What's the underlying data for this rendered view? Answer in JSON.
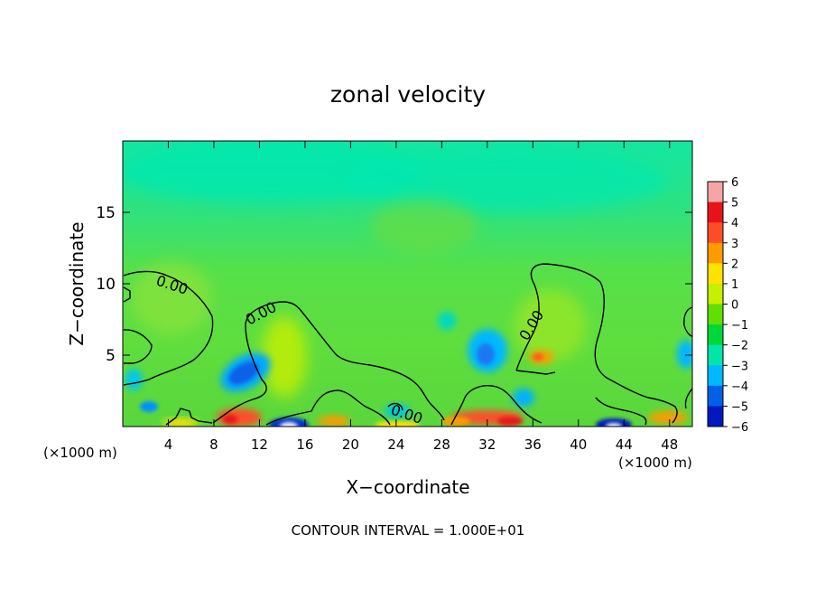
{
  "chart_data": {
    "type": "heatmap",
    "title": "zonal velocity",
    "xlabel": "X−coordinate",
    "ylabel": "Z−coordinate",
    "x_units_left": "(×1000 m)",
    "x_units_right": "(×1000 m)",
    "footer": "CONTOUR INTERVAL = 1.000E+01",
    "contour_label": "0.00",
    "xlim": [
      0,
      50
    ],
    "ylim": [
      0,
      20
    ],
    "x_ticks": [
      4,
      8,
      12,
      16,
      20,
      24,
      28,
      32,
      36,
      40,
      44,
      48
    ],
    "y_ticks": [
      5,
      10,
      15
    ],
    "colorbar": {
      "levels": [
        6,
        5,
        4,
        3,
        2,
        1,
        0,
        -1,
        -2,
        -3,
        -4,
        -5,
        -6
      ],
      "colors": [
        "#f4a6a6",
        "#e8131a",
        "#ff4d2a",
        "#ff9a00",
        "#ffe200",
        "#c6f000",
        "#5fe000",
        "#00d83a",
        "#00e6a8",
        "#00b8ff",
        "#0060e8",
        "#0018c0",
        "#5a18b0"
      ]
    },
    "features": [
      {
        "type": "negative",
        "x": 11.5,
        "z": 4.0,
        "value": -3.5
      },
      {
        "type": "negative",
        "x": 31.0,
        "z": 5.5,
        "value": -2.8
      },
      {
        "type": "negative",
        "x": 42.5,
        "z": 0.3,
        "value": -5
      },
      {
        "type": "positive",
        "x": 36.5,
        "z": 5.0,
        "value": 3
      },
      {
        "type": "positive",
        "x": 13.8,
        "z": 4.5,
        "value": 1.5
      },
      {
        "type": "positive",
        "x": 10.0,
        "z": 0.5,
        "value": 4
      }
    ]
  }
}
